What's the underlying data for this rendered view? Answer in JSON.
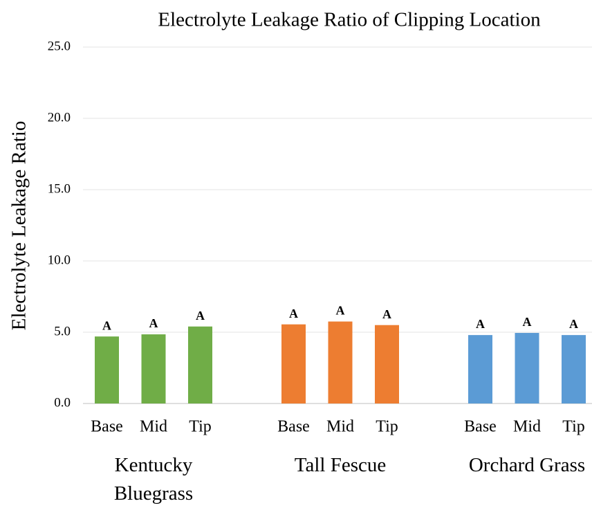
{
  "chart_data": {
    "type": "bar",
    "title": "Electrolyte Leakage Ratio of Clipping Location",
    "y_label": "Electrolyte Leakage Ratio",
    "ylim": [
      0,
      25
    ],
    "yticks": [
      {
        "value": 0,
        "label": "0.0"
      },
      {
        "value": 5,
        "label": "5.0"
      },
      {
        "value": 10,
        "label": "10.0"
      },
      {
        "value": 15,
        "label": "15.0"
      },
      {
        "value": 20,
        "label": "20.0"
      },
      {
        "value": 25,
        "label": "25.0"
      }
    ],
    "grid": true,
    "groups": [
      {
        "name": "Kentucky Bluegrass",
        "color": "#70ad47",
        "categories": [
          "Base",
          "Mid",
          "Tip"
        ],
        "values": [
          4.7,
          4.85,
          5.4
        ],
        "letters": [
          "A",
          "A",
          "A"
        ]
      },
      {
        "name": "Tall Fescue",
        "color": "#ed7d31",
        "categories": [
          "Base",
          "Mid",
          "Tip"
        ],
        "values": [
          5.55,
          5.75,
          5.5
        ],
        "letters": [
          "A",
          "A",
          "A"
        ]
      },
      {
        "name": "Orchard Grass",
        "color": "#5b9bd5",
        "categories": [
          "Base",
          "Mid",
          "Tip"
        ],
        "values": [
          4.8,
          4.95,
          4.8
        ],
        "letters": [
          "A",
          "A",
          "A"
        ]
      }
    ]
  }
}
